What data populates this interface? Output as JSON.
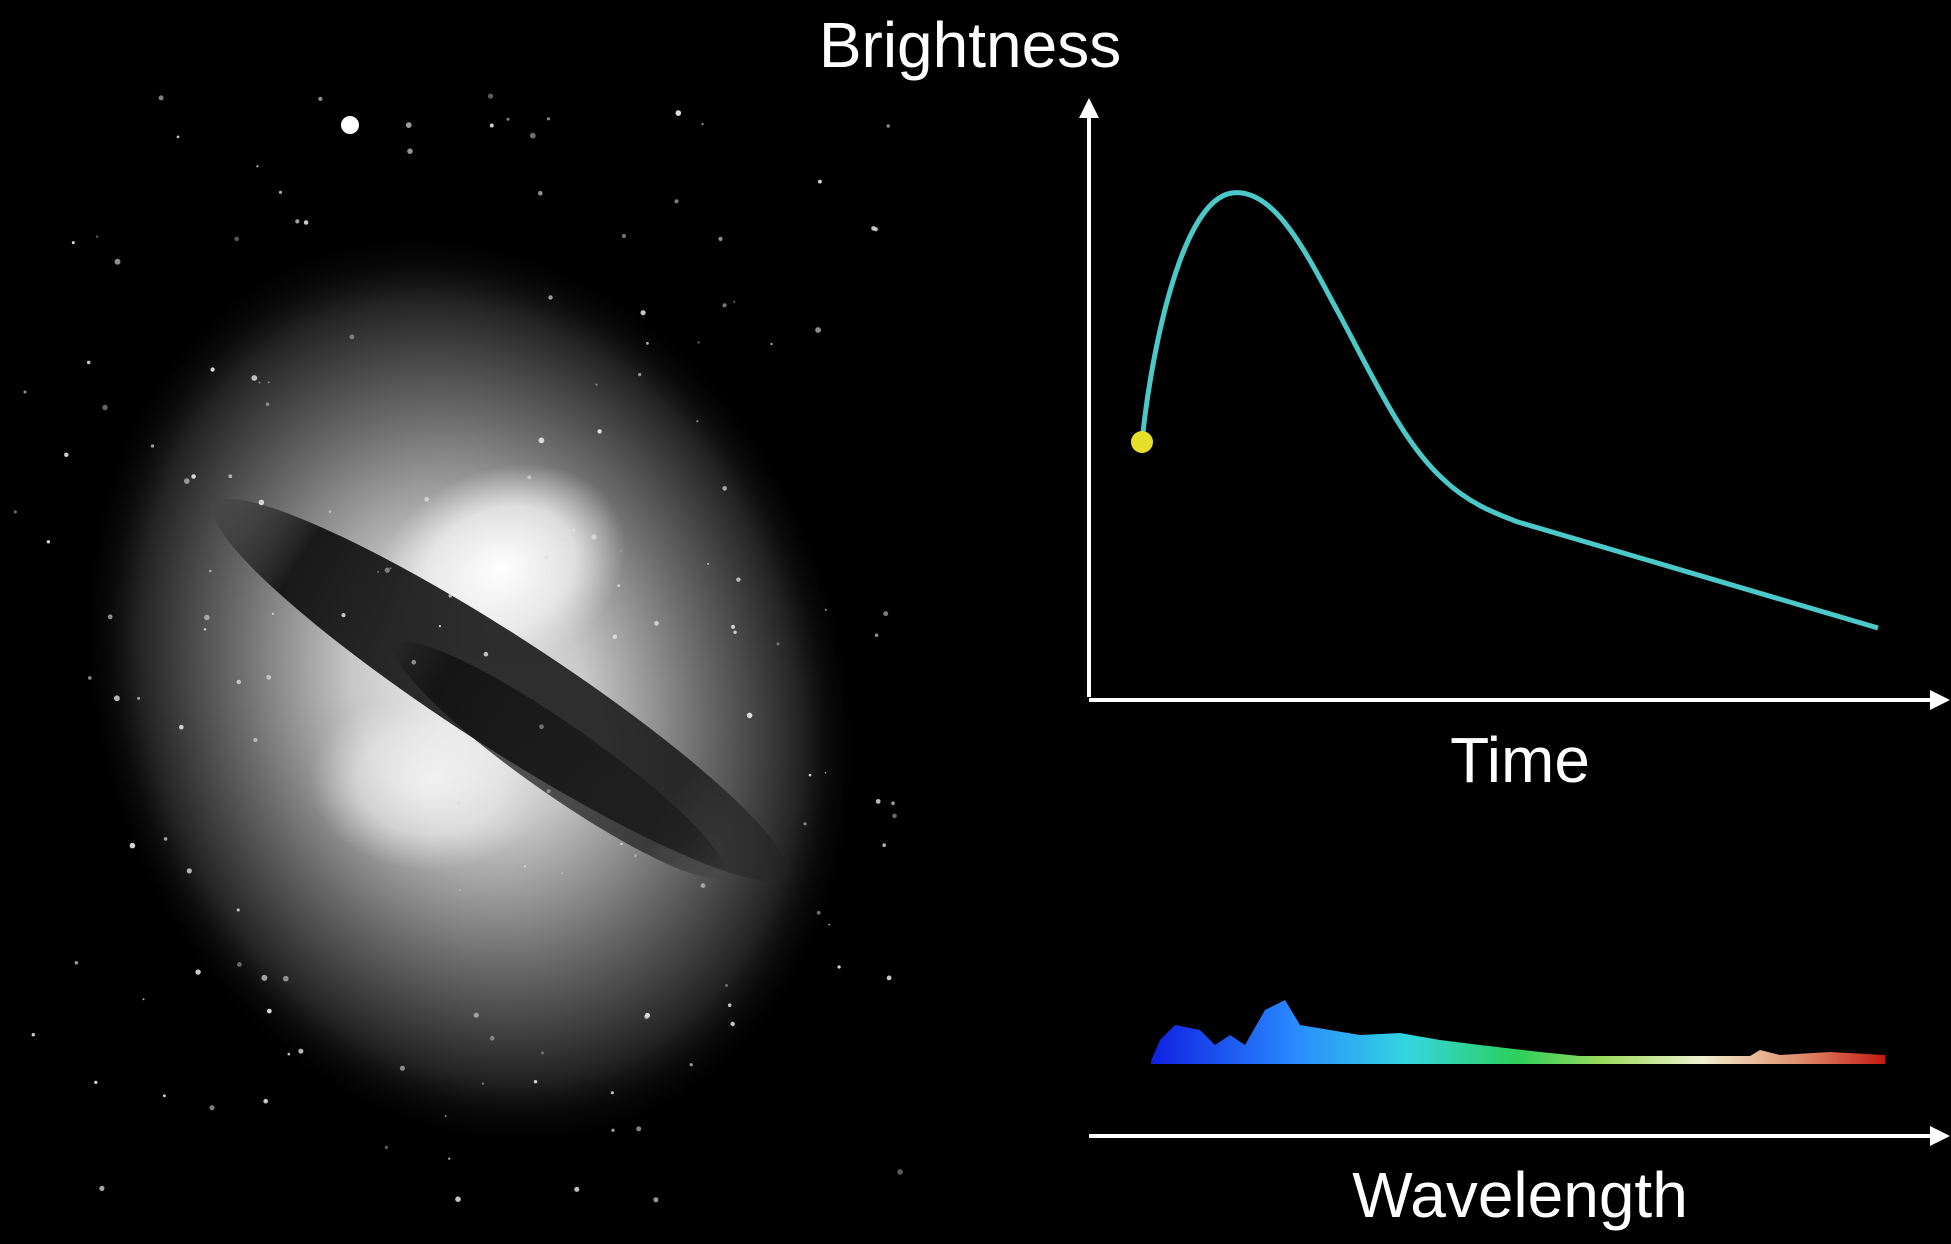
{
  "labels": {
    "brightness": "Brightness",
    "time": "Time",
    "wavelength": "Wavelength"
  }
}
